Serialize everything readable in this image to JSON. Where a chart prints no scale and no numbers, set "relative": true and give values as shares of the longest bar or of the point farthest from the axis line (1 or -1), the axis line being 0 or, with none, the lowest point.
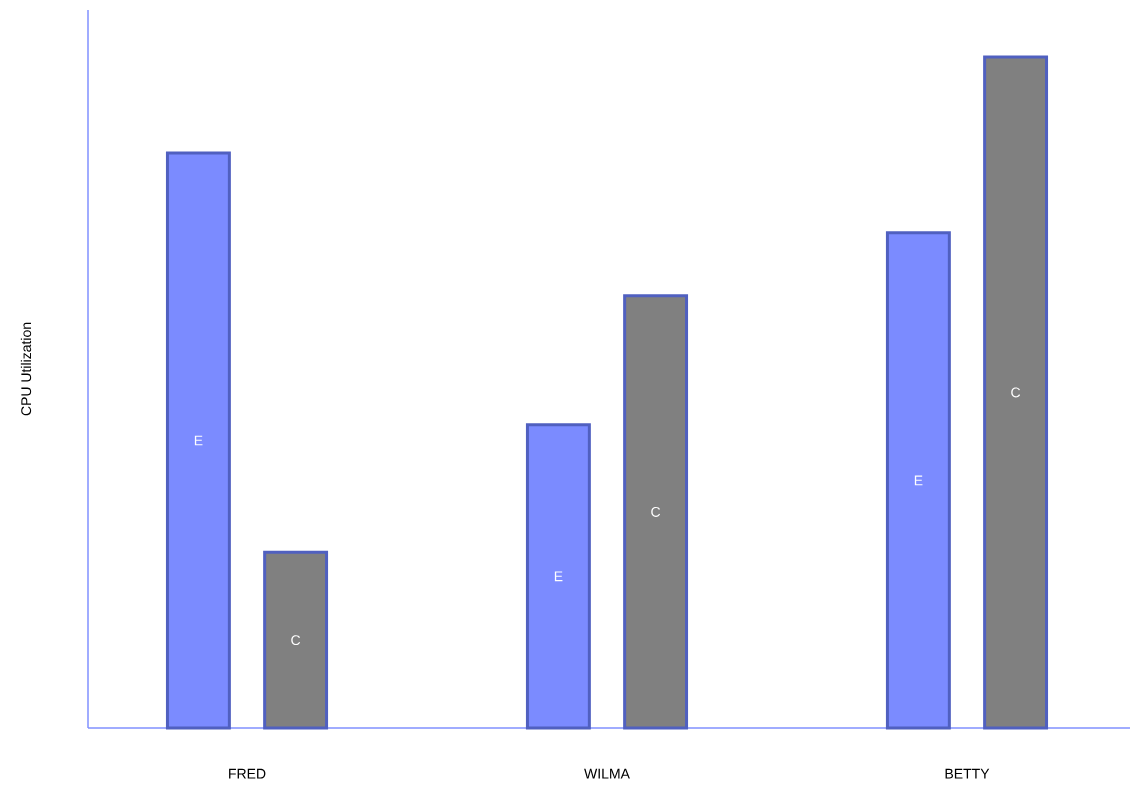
{
  "chart_data": {
    "type": "bar",
    "relative": true,
    "ylabel": "CPU Utilization",
    "categories": [
      "FRED",
      "WILMA",
      "BETTY"
    ],
    "series": [
      {
        "name": "E",
        "color": "#7b8bff",
        "values": [
          0.857,
          0.452,
          0.738
        ]
      },
      {
        "name": "C",
        "color": "#808080",
        "values": [
          0.262,
          0.644,
          1
        ]
      }
    ]
  }
}
